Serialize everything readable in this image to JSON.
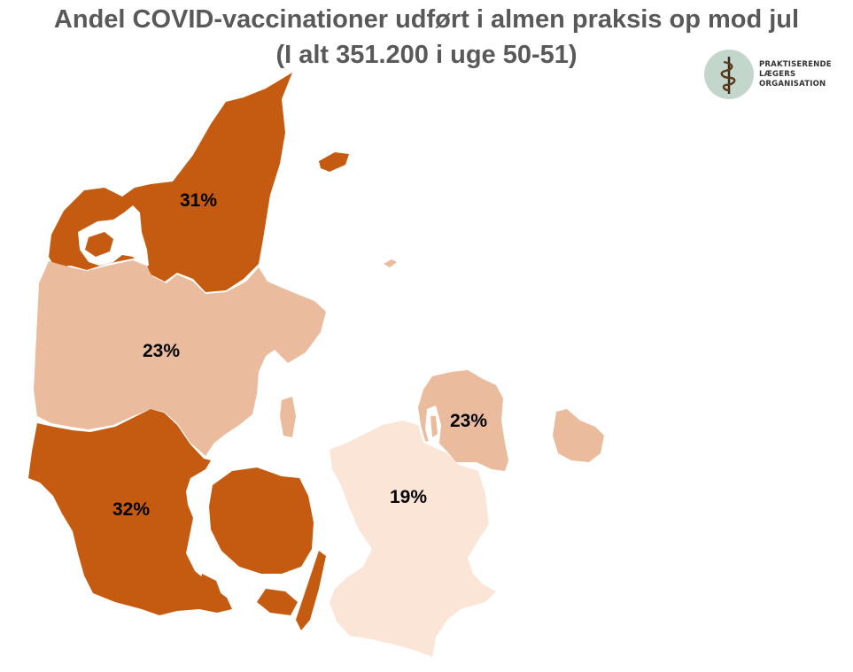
{
  "title": {
    "line1": "Andel COVID-vaccinationer udført i almen praksis op mod jul",
    "line2": "(I alt 351.200 i uge 50-51)"
  },
  "logo": {
    "line1": "PRAKTISERENDE",
    "line2": "LÆGERS",
    "line3": "ORGANISATION",
    "icon": "staff-of-asclepius-icon"
  },
  "regions": [
    {
      "id": "nordjylland",
      "value": "31%",
      "color": "#c55a11"
    },
    {
      "id": "midtjylland",
      "value": "23%",
      "color": "#ebbb9d"
    },
    {
      "id": "syddanmark",
      "value": "32%",
      "color": "#c55a11"
    },
    {
      "id": "hovedstaden",
      "value": "23%",
      "color": "#ebbb9d"
    },
    {
      "id": "sjaelland",
      "value": "19%",
      "color": "#fbe5d6"
    }
  ]
}
